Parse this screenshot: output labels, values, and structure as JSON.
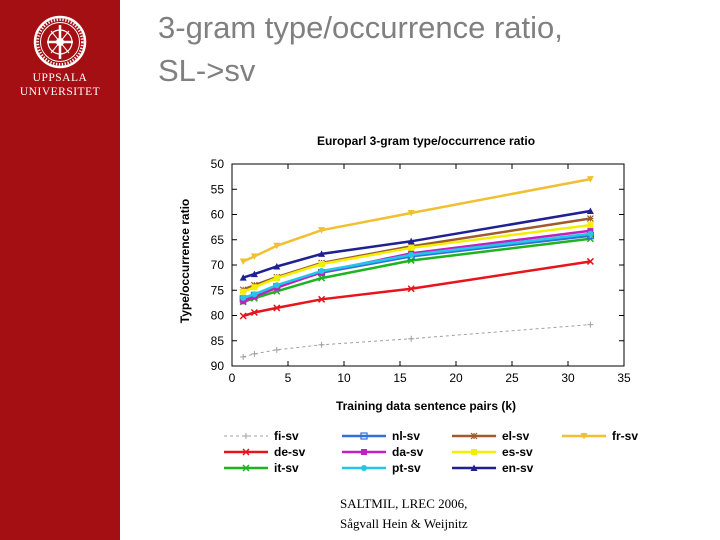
{
  "slide": {
    "title_line1": "3-gram type/occurrence ratio,",
    "title_line2": "SL->sv",
    "footer_line1": "SALTMIL, LREC 2006,",
    "footer_line2": "Sågvall Hein & Weijnitz"
  },
  "sidebar": {
    "background": "#a30f12",
    "logo_icon": "university-seal-icon",
    "logo_line1": "UPPSALA",
    "logo_line2": "UNIVERSITET"
  },
  "chart_data": {
    "type": "line",
    "title": "Europarl 3-gram type/occurrence ratio",
    "xlabel": "Training data sentence pairs (k)",
    "ylabel": "Type/occurrence ratio",
    "xlim": [
      0,
      35
    ],
    "ylim": [
      90,
      50
    ],
    "y_axis_reversed": true,
    "xticks": [
      0,
      5,
      10,
      15,
      20,
      25,
      30,
      35
    ],
    "yticks": [
      50,
      55,
      60,
      65,
      70,
      75,
      80,
      85,
      90
    ],
    "grid": false,
    "legend_position": "bottom",
    "x": [
      1,
      2,
      4,
      8,
      16,
      32
    ],
    "series": [
      {
        "name": "fi-sv",
        "color": "#a0a0a0",
        "dashed": true,
        "marker": "+",
        "values": [
          88.2,
          87.6,
          86.8,
          85.8,
          84.6,
          81.8
        ]
      },
      {
        "name": "de-sv",
        "color": "#e8141c",
        "marker": "x",
        "values": [
          80.1,
          79.4,
          78.5,
          76.8,
          74.7,
          69.3
        ]
      },
      {
        "name": "it-sv",
        "color": "#1eb41e",
        "marker": "x",
        "values": [
          77.3,
          76.6,
          75.2,
          72.6,
          69.1,
          64.8
        ]
      },
      {
        "name": "nl-sv",
        "color": "#3070d8",
        "marker": "square-open",
        "values": [
          76.7,
          76.0,
          74.3,
          71.5,
          68.3,
          64.2
        ]
      },
      {
        "name": "da-sv",
        "color": "#c020c0",
        "marker": "square",
        "values": [
          77.2,
          76.3,
          74.5,
          71.4,
          67.7,
          63.2
        ]
      },
      {
        "name": "pt-sv",
        "color": "#20c8e6",
        "marker": "circle",
        "values": [
          76.5,
          75.8,
          74.0,
          71.2,
          68.0,
          63.8
        ]
      },
      {
        "name": "el-sv",
        "color": "#a05a2c",
        "marker": "star",
        "values": [
          74.9,
          74.0,
          72.4,
          69.6,
          66.3,
          60.8
        ]
      },
      {
        "name": "es-sv",
        "color": "#f0f000",
        "marker": "square",
        "values": [
          75.3,
          74.4,
          72.6,
          69.8,
          66.6,
          62.1
        ]
      },
      {
        "name": "en-sv",
        "color": "#202090",
        "marker": "triangle",
        "values": [
          72.5,
          71.8,
          70.3,
          67.8,
          65.3,
          59.3
        ]
      },
      {
        "name": "fr-sv",
        "color": "#f0c030",
        "marker": "triangle-down",
        "values": [
          69.3,
          68.3,
          66.2,
          63.1,
          59.7,
          53.0
        ]
      }
    ]
  }
}
